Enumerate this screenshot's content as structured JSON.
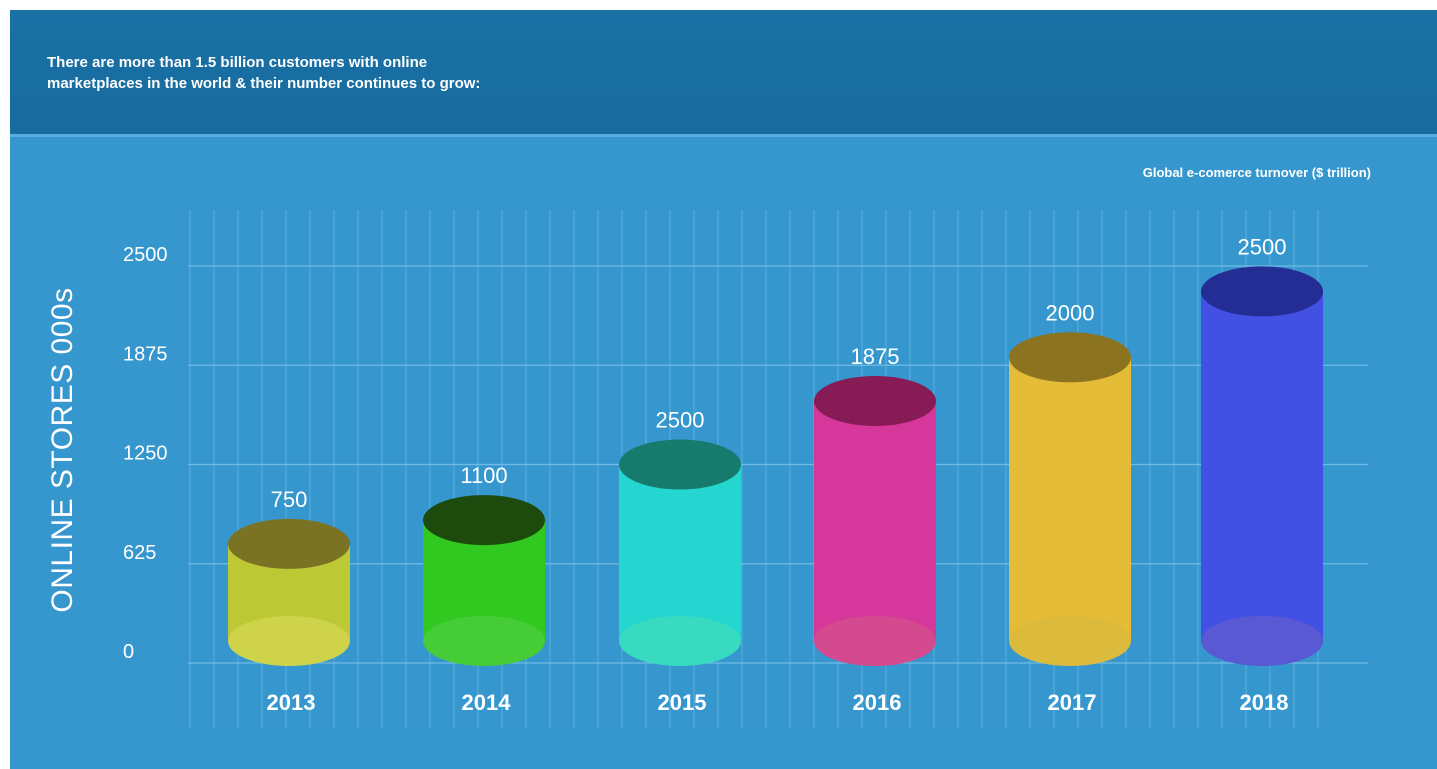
{
  "header": {
    "line1": "There are more than 1.5 billion customers with online",
    "line2": "marketplaces in the world & their number continues to grow:"
  },
  "chart_data": {
    "type": "bar",
    "subtitle": "Global e-comerce turnover  ($ trillion)",
    "ylabel": "ONLINE STORES 000s",
    "ylim": [
      0,
      2500
    ],
    "yticks": [
      0,
      625,
      1250,
      1875,
      2500
    ],
    "categories": [
      "2013",
      "2014",
      "2015",
      "2016",
      "2017",
      "2018"
    ],
    "values": [
      750,
      1100,
      2500,
      1875,
      2000,
      2500
    ],
    "bar_levels": [
      750,
      900,
      1250,
      1650,
      1925,
      2340
    ],
    "colors": {
      "2013": {
        "body": "#bcc935",
        "top": "#7a7324",
        "bottom": "#cfd34a"
      },
      "2014": {
        "body": "#31c81f",
        "top": "#1d4a0d",
        "bottom": "#45cc36"
      },
      "2015": {
        "body": "#24d6cf",
        "top": "#167a6c",
        "bottom": "#38dbc0"
      },
      "2016": {
        "body": "#d6379a",
        "top": "#861b55",
        "bottom": "#d44a8f"
      },
      "2017": {
        "body": "#e4bc37",
        "top": "#8c731f",
        "bottom": "#dcba3c"
      },
      "2018": {
        "body": "#4350e4",
        "top": "#242d93",
        "bottom": "#5a59d4"
      }
    },
    "grid": true,
    "legend": "none"
  }
}
